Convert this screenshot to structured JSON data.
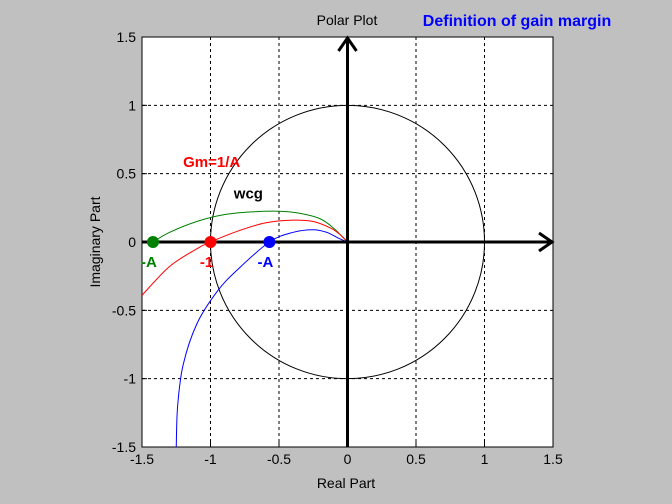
{
  "figure": {
    "background": "#c0c0c0",
    "header_note": "Definition of gain margin",
    "header_note_color": "#0000ff"
  },
  "chart_data": {
    "type": "line",
    "title": "Polar Plot",
    "xlabel": "Real Part",
    "ylabel": "Imaginary Part",
    "xlim": [
      -1.5,
      1.5
    ],
    "ylim": [
      -1.5,
      1.5
    ],
    "xticks": [
      "-1.5",
      "-1",
      "-0.5",
      "0",
      "0.5",
      "1",
      "1.5"
    ],
    "yticks": [
      "1.5",
      "1",
      "0.5",
      "0",
      "-0.5",
      "-1",
      "-1.5"
    ],
    "grid": true,
    "series": [
      {
        "color": "#008000",
        "x": [
          -1.42,
          -1.3,
          -1.1,
          -0.9,
          -0.7,
          -0.5,
          -0.35,
          -0.2,
          -0.1,
          0
        ],
        "y": [
          0,
          0.07,
          0.15,
          0.2,
          0.22,
          0.225,
          0.21,
          0.17,
          0.1,
          0
        ]
      },
      {
        "color": "#ff0000",
        "x": [
          -1.5,
          -1.3,
          -1.1,
          -1.0,
          -0.8,
          -0.6,
          -0.4,
          -0.25,
          -0.12,
          -0.05,
          0
        ],
        "y": [
          -0.39,
          -0.18,
          -0.05,
          0,
          0.08,
          0.14,
          0.16,
          0.15,
          0.1,
          0.05,
          0
        ]
      },
      {
        "color": "#0000ff",
        "x": [
          -1.25,
          -1.24,
          -1.2,
          -1.1,
          -0.95,
          -0.8,
          -0.57,
          -0.4,
          -0.25,
          -0.15,
          -0.07,
          0
        ],
        "y": [
          -1.5,
          -1.2,
          -0.9,
          -0.6,
          -0.36,
          -0.2,
          0,
          0.07,
          0.09,
          0.07,
          0.03,
          0
        ]
      }
    ],
    "unit_circle": {
      "center": [
        0,
        0
      ],
      "radius": 1,
      "color": "#000000"
    },
    "markers": [
      {
        "x": -1.42,
        "y": 0,
        "color": "#008000",
        "label": "-A"
      },
      {
        "x": -1.0,
        "y": 0,
        "color": "#ff0000",
        "label": "-1"
      },
      {
        "x": -0.57,
        "y": 0,
        "color": "#0000ff",
        "label": "-A"
      }
    ],
    "annotations": [
      {
        "text": "Gm=1/A",
        "x": -1.2,
        "y": 0.55,
        "color": "#ff0000"
      },
      {
        "text": "wcg",
        "x": -0.83,
        "y": 0.32,
        "color": "#000000"
      }
    ]
  }
}
